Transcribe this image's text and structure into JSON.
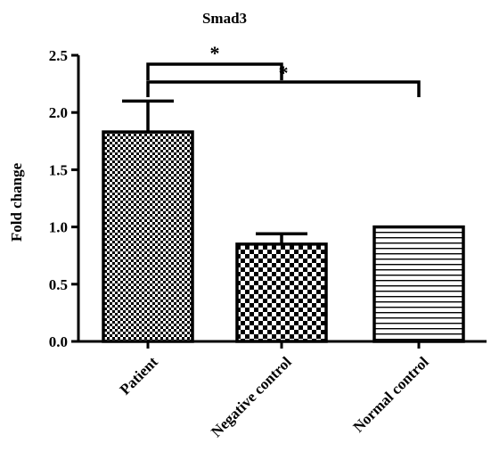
{
  "chart_data": {
    "type": "bar",
    "title": "Smad3",
    "xlabel": "",
    "ylabel": "Fold change",
    "ylim": [
      0,
      2.5
    ],
    "yticks": [
      "0.0",
      "0.5",
      "1.0",
      "1.5",
      "2.0",
      "2.5"
    ],
    "grid": false,
    "categories": [
      "Patient",
      "Negative control",
      "Normal control"
    ],
    "values": [
      1.83,
      0.85,
      1.0
    ],
    "errors": [
      0.27,
      0.09,
      0.0
    ],
    "bar_patterns": [
      "fine-checker",
      "coarse-checker",
      "horizontal-lines"
    ],
    "significance": [
      {
        "from": "Patient",
        "to": "Negative control",
        "label": "*"
      },
      {
        "from": "Patient",
        "to": "Normal control",
        "label": "*"
      }
    ]
  }
}
